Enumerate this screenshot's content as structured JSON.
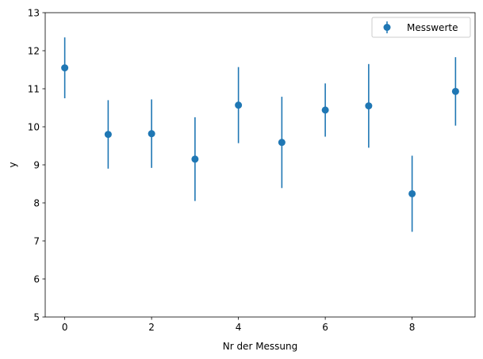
{
  "chart_data": {
    "type": "scatter",
    "title": "",
    "xlabel": "Nr der Messung",
    "ylabel": "y",
    "xlim": [
      -0.45,
      9.45
    ],
    "ylim": [
      5,
      13
    ],
    "xticks": [
      0,
      2,
      4,
      6,
      8
    ],
    "yticks": [
      5,
      6,
      7,
      8,
      9,
      10,
      11,
      12,
      13
    ],
    "grid": false,
    "legend_position": "upper right",
    "colors": {
      "series": "#1f77b4"
    },
    "series": [
      {
        "name": "Messwerte",
        "x": [
          0,
          1,
          2,
          3,
          4,
          5,
          6,
          7,
          8,
          9
        ],
        "y": [
          11.55,
          9.8,
          9.82,
          9.15,
          10.57,
          9.59,
          10.44,
          10.55,
          8.24,
          10.93
        ],
        "yerr": [
          0.8,
          0.9,
          0.9,
          1.1,
          1.0,
          1.2,
          0.7,
          1.1,
          1.0,
          0.9
        ]
      }
    ]
  }
}
